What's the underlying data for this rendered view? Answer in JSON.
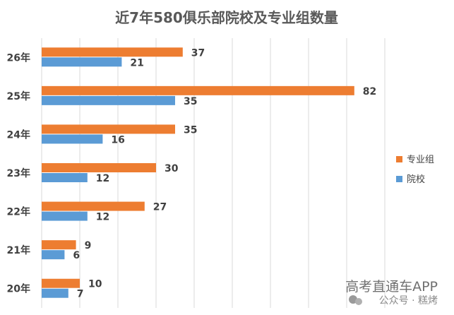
{
  "chart_data": {
    "type": "bar",
    "orientation": "horizontal",
    "title": "近7年580俱乐部院校及专业组数量",
    "categories": [
      "26年",
      "25年",
      "24年",
      "23年",
      "22年",
      "21年",
      "20年"
    ],
    "series": [
      {
        "name": "专业组",
        "color": "#ED7D31",
        "values": [
          37,
          82,
          35,
          30,
          27,
          9,
          10
        ]
      },
      {
        "name": "院校",
        "color": "#5B9BD5",
        "values": [
          21,
          35,
          16,
          12,
          12,
          6,
          7
        ]
      }
    ],
    "xlim": [
      0,
      90
    ],
    "grid": true,
    "legend": "right"
  },
  "watermark": {
    "line1": "高考直通车APP",
    "line2": "公众号 · 糕烤"
  }
}
